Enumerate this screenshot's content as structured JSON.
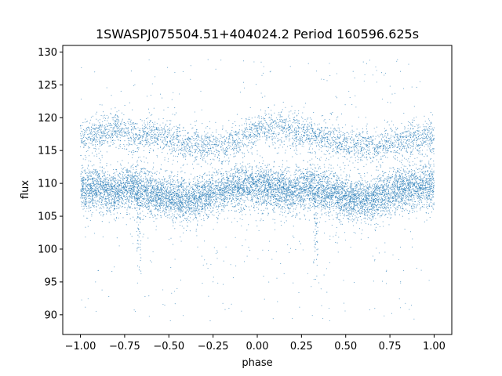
{
  "chart_data": {
    "type": "scatter",
    "title": "1SWASPJ075504.51+404024.2 Period 160596.625s",
    "xlabel": "phase",
    "ylabel": "flux",
    "xlim": [
      -1.1,
      1.1
    ],
    "ylim": [
      87.0,
      131.0
    ],
    "x_ticks": [
      -1.0,
      -0.75,
      -0.5,
      -0.25,
      0.0,
      0.25,
      0.5,
      0.75,
      1.0
    ],
    "x_tick_labels": [
      "−1.00",
      "−0.75",
      "−0.50",
      "−0.25",
      "0.00",
      "0.25",
      "0.50",
      "0.75",
      "1.00"
    ],
    "y_ticks": [
      90,
      95,
      100,
      105,
      110,
      115,
      120,
      125,
      130
    ],
    "y_tick_labels": [
      "90",
      "95",
      "100",
      "105",
      "110",
      "115",
      "120",
      "125",
      "130"
    ],
    "grid": false,
    "marker_color": "#1f77b4",
    "series": [
      {
        "band": "lower",
        "phase": [
          -1.0,
          -0.9,
          -0.8,
          -0.7,
          -0.6,
          -0.5,
          -0.4,
          -0.3,
          -0.2,
          -0.1,
          0.0,
          0.1,
          0.2,
          0.3,
          0.4,
          0.5,
          0.6,
          0.7,
          0.8,
          0.9,
          1.0
        ],
        "flux_center": [
          109.0,
          109.3,
          108.6,
          109.6,
          108.6,
          107.8,
          107.2,
          108.2,
          109.0,
          109.5,
          109.6,
          109.3,
          108.6,
          109.6,
          108.6,
          107.8,
          107.2,
          108.2,
          109.0,
          109.5,
          109.6
        ],
        "flux_spread": 1.6,
        "points": 9000
      },
      {
        "band": "upper",
        "phase": [
          -1.0,
          -0.9,
          -0.8,
          -0.7,
          -0.6,
          -0.5,
          -0.4,
          -0.3,
          -0.2,
          -0.1,
          0.0,
          0.1,
          0.2,
          0.3,
          0.4,
          0.5,
          0.6,
          0.7,
          0.8,
          0.9,
          1.0
        ],
        "flux_center": [
          117.0,
          117.5,
          118.5,
          117.2,
          117.5,
          116.8,
          116.0,
          115.5,
          115.8,
          116.7,
          117.8,
          118.5,
          118.0,
          117.5,
          116.8,
          116.0,
          115.5,
          115.8,
          116.2,
          116.5,
          117.0
        ],
        "flux_spread": 1.3,
        "points": 3500
      },
      {
        "band": "dips",
        "phase": [
          -0.67,
          0.33
        ],
        "flux_min": 94.0
      }
    ]
  }
}
